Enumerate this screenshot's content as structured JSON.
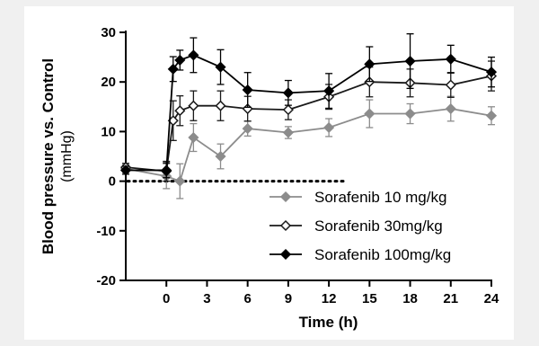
{
  "chart_data": {
    "type": "line",
    "title": "",
    "xlabel": "Time (h)",
    "ylabel": "Blood pressure vs. Control",
    "ylabel_unit": "(mmHg)",
    "xlim": [
      -3,
      24
    ],
    "ylim": [
      -20,
      30
    ],
    "x_ticks": [
      0,
      3,
      6,
      9,
      12,
      15,
      18,
      21,
      24
    ],
    "y_ticks": [
      -20,
      -10,
      0,
      10,
      20,
      30
    ],
    "reference_line": {
      "y": 0,
      "style": "dotted"
    },
    "legend_position": "bottom-right",
    "grid": false,
    "series": [
      {
        "name": "Sorafenib 10 mg/kg",
        "color": "#8c8c8c",
        "marker": "filled-diamond",
        "x": [
          -3,
          0,
          1,
          2,
          4,
          6,
          9,
          12,
          15,
          18,
          21,
          24
        ],
        "y": [
          2.5,
          1.0,
          0.0,
          8.8,
          5.0,
          10.6,
          9.8,
          10.8,
          13.6,
          13.6,
          14.6,
          13.2
        ],
        "err": [
          0.8,
          2.5,
          3.5,
          2.8,
          2.5,
          1.5,
          1.2,
          1.8,
          2.8,
          2.0,
          2.5,
          1.8
        ]
      },
      {
        "name": "Sorafenib 30mg/kg",
        "color": "#1a1a1a",
        "marker": "open-diamond",
        "x": [
          -3,
          0,
          0.5,
          1,
          2,
          4,
          6,
          9,
          12,
          15,
          18,
          21,
          24
        ],
        "y": [
          2.8,
          2.0,
          12.2,
          14.2,
          15.2,
          15.2,
          14.6,
          14.4,
          17.0,
          20.0,
          19.8,
          19.4,
          21.2
        ],
        "err": [
          0.8,
          2.0,
          4.0,
          3.0,
          3.0,
          3.0,
          2.5,
          2.0,
          2.5,
          3.0,
          2.8,
          2.5,
          3.0
        ]
      },
      {
        "name": "Sorafenib 100mg/kg",
        "color": "#000000",
        "marker": "filled-diamond",
        "x": [
          -3,
          0,
          0.5,
          1,
          2,
          4,
          6,
          9,
          12,
          15,
          18,
          21,
          24
        ],
        "y": [
          2.2,
          2.2,
          22.6,
          24.4,
          25.4,
          23.0,
          18.4,
          17.8,
          18.2,
          23.6,
          24.2,
          24.6,
          22.0
        ],
        "err": [
          0.8,
          1.5,
          2.5,
          2.0,
          3.5,
          3.5,
          3.5,
          2.5,
          3.5,
          3.5,
          5.5,
          2.8,
          3.0
        ]
      }
    ]
  }
}
